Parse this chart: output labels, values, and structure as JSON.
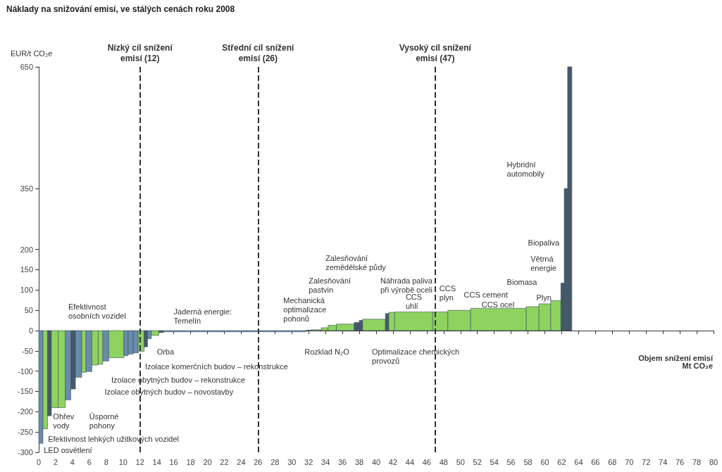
{
  "chart_data": {
    "type": "histogram",
    "title": "Náklady na snižování emisí, ve stálých cenách roku 2008",
    "xlabel": "Objem snížení emisí\nMt CO₂e",
    "ylabel": "EUR/t CO₂e",
    "bins": [
      0,
      0.5,
      1.05,
      1.5,
      2.3,
      3.15,
      3.8,
      4.35,
      5.1,
      5.6,
      6.3,
      7.05,
      7.6,
      8.3,
      10.1,
      10.6,
      11.2,
      11.8,
      12.5,
      12.9,
      13.35,
      14.25,
      14.8,
      31.7,
      32.3,
      33.5,
      34.3,
      35.3,
      37.4,
      38,
      38.4,
      41.1,
      41.5,
      42.2,
      46.7,
      48.5,
      51.2,
      57.8,
      59.3,
      60.7,
      61.9,
      62.3,
      62.7,
      63.2
    ],
    "values": [
      -278,
      -242,
      -210,
      -190,
      -190,
      -171,
      -144,
      -115,
      -103,
      -101,
      -85,
      -83,
      -75,
      -67,
      -62,
      -58,
      -55,
      -51,
      -40,
      -20,
      -12,
      -5,
      -3,
      1,
      2,
      7,
      13,
      16,
      20,
      25,
      28,
      42,
      45,
      46,
      46,
      50,
      55,
      59,
      66,
      74,
      117,
      350,
      650
    ],
    "colors": [
      "#6a8cab",
      "#8ed35f",
      "#46596a",
      "#8ed35f",
      "#8ed35f",
      "#6a8cab",
      "#46596a",
      "#6a8cab",
      "#8ed35f",
      "#6a8cab",
      "#8ed35f",
      "#8ed35f",
      "#6a8cab",
      "#8ed35f",
      "#6a8cab",
      "#6a8cab",
      "#6a8cab",
      "#8ed35f",
      "#46596a",
      "#6a8cab",
      "#8ed35f",
      "#46596a",
      "#6a8cab",
      "#46596a",
      "#8ed35f",
      "#8ed35f",
      "#8ed35f",
      "#8ed35f",
      "#46596a",
      "#46596a",
      "#8ed35f",
      "#46596a",
      "#8ed35f",
      "#8ed35f",
      "#8ed35f",
      "#8ed35f",
      "#8ed35f",
      "#8ed35f",
      "#8ed35f",
      "#8ed35f",
      "#46596a",
      "#46596a",
      "#46596a"
    ],
    "xlim": [
      0,
      80
    ],
    "xticks": [
      0,
      2,
      4,
      6,
      8,
      10,
      12,
      14,
      16,
      18,
      20,
      22,
      24,
      26,
      28,
      30,
      32,
      34,
      36,
      38,
      40,
      42,
      44,
      46,
      48,
      50,
      52,
      54,
      56,
      58,
      60,
      62,
      64,
      66,
      68,
      70,
      72,
      74,
      76,
      78,
      80
    ],
    "ylim": [
      -300,
      650
    ],
    "yticks": [
      -300,
      -250,
      -200,
      -150,
      -100,
      -50,
      0,
      50,
      100,
      150,
      200,
      350,
      650
    ],
    "ref_lines": [
      {
        "axis": "x",
        "value": 12,
        "label": "Nízký cíl snížení\nemisí (12)",
        "line_style": "dashed",
        "color": "#333333"
      },
      {
        "axis": "x",
        "value": 26,
        "label": "Střední cíl snížení\nemisí (26)",
        "line_style": "dashed",
        "color": "#333333"
      },
      {
        "axis": "x",
        "value": 47,
        "label": "Vysoký cíl snížení\nemisí (47)",
        "line_style": "dashed",
        "color": "#333333"
      }
    ],
    "annotations": [
      "Efektivnost\nosobních vozidel",
      "Jaderná energie:\nTemelín",
      "Orba",
      "Izolace komerčních budov – rekonstrukce",
      "Izolace obytných budov – rekonstrukce",
      "Izolace obytných budov – novostavby",
      "Ohřev\nvody",
      "Úsporné\npohony",
      "Efektivnost lehkých užitkových vozidel",
      "LED osvětlení",
      "Mechanická\noptimalizace\npohonů",
      "Zalesňování\npastvin",
      "Zalesňování\nzemědělské půdy",
      "Rozklad N₂O",
      "Optimalizace chemických\nprovozů",
      "Náhrada paliva\npři výrobě oceli",
      "CCS\nuhlí",
      "CCS\nplyn",
      "CCS cement",
      "CCS ocel",
      "Biomasa",
      "Plyn",
      "Větrná\nenergie",
      "Biopaliva",
      "Hybridní\nautomobily"
    ]
  }
}
